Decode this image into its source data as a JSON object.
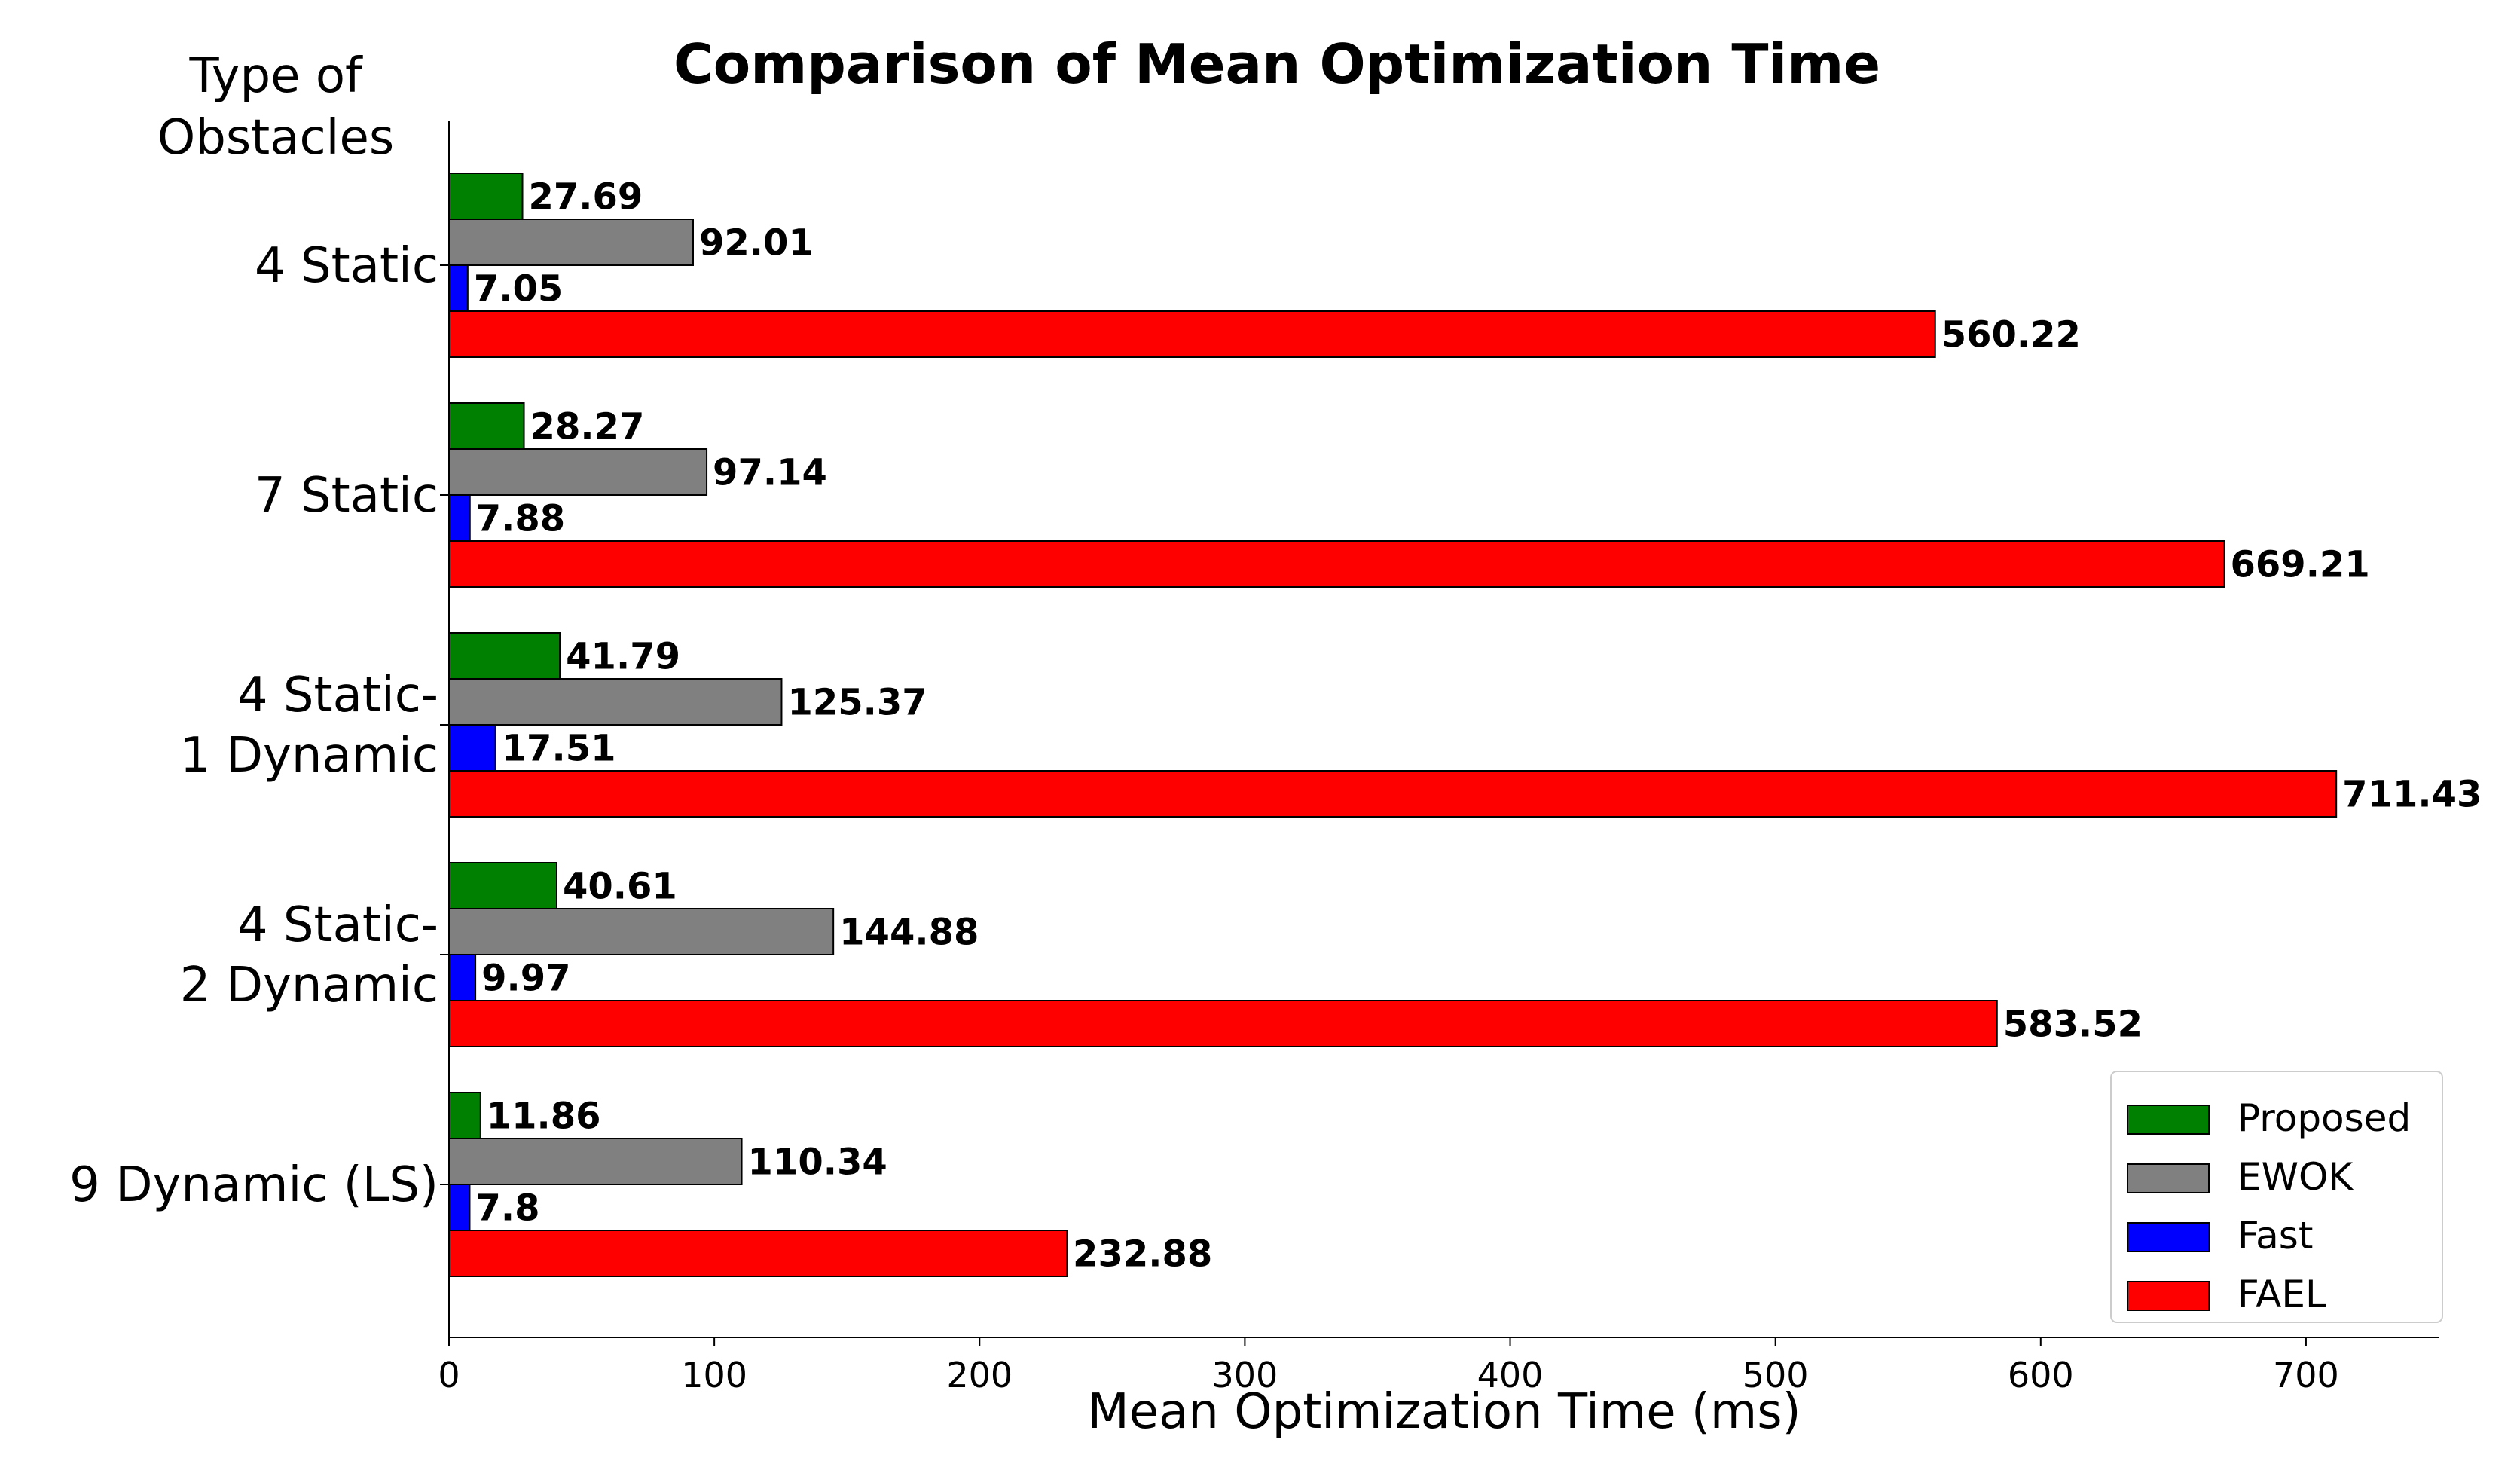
{
  "chart_data": {
    "type": "bar",
    "orientation": "horizontal",
    "title": "Comparison of Mean Optimization Time",
    "xlabel": "Mean Optimization Time (ms)",
    "ylabel": "Type of Obstacles",
    "xlim": [
      0,
      750
    ],
    "xticks": [
      0,
      100,
      200,
      300,
      400,
      500,
      600,
      700
    ],
    "grid": false,
    "legend_position": "bottom-right",
    "categories": [
      [
        "4 Static"
      ],
      [
        "7 Static"
      ],
      [
        "4 Static-",
        "1 Dynamic"
      ],
      [
        "4 Static-",
        "2 Dynamic"
      ],
      [
        "9 Dynamic (LS)"
      ]
    ],
    "series": [
      {
        "name": "Proposed",
        "color": "#008000",
        "values": [
          27.69,
          28.27,
          41.79,
          40.61,
          11.86
        ],
        "labels": [
          "27.69",
          "28.27",
          "41.79",
          "40.61",
          "11.86"
        ]
      },
      {
        "name": "EWOK",
        "color": "#808080",
        "values": [
          92.01,
          97.14,
          125.37,
          144.88,
          110.34
        ],
        "labels": [
          "92.01",
          "97.14",
          "125.37",
          "144.88",
          "110.34"
        ]
      },
      {
        "name": "Fast",
        "color": "#0000ff",
        "values": [
          7.05,
          7.88,
          17.51,
          9.97,
          7.8
        ],
        "labels": [
          "7.05",
          "7.88",
          "17.51",
          "9.97",
          "7.8"
        ]
      },
      {
        "name": "FAEL",
        "color": "#ff0000",
        "values": [
          560.22,
          669.21,
          711.43,
          583.52,
          232.88
        ],
        "labels": [
          "560.22",
          "669.21",
          "711.43",
          "583.52",
          "232.88"
        ]
      }
    ]
  }
}
